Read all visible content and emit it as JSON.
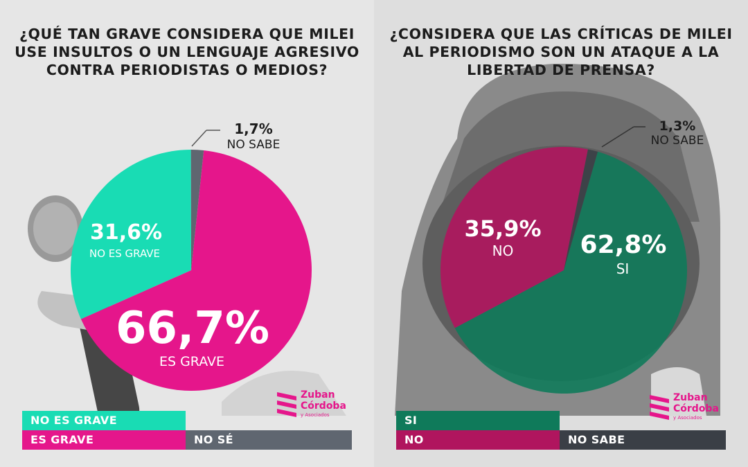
{
  "colors": {
    "teal": "#19dcb4",
    "magenta": "#e5168b",
    "gray": "#5f6670",
    "dark_green": "#0f7a5a",
    "dark_magenta": "#b0155e",
    "dark_gray": "#3a3f46"
  },
  "left": {
    "title_lines": [
      "¿QUÉ TAN GRAVE CONSIDERA QUE MILEI",
      "USE INSULTOS O UN LENGUAJE AGRESIVO",
      "CONTRA PERIODISTAS O MEDIOS?"
    ],
    "legend": {
      "no_grave": "NO ES GRAVE",
      "grave": "ES GRAVE",
      "no_se": "NO SÉ"
    }
  },
  "right": {
    "title_lines": [
      "¿CONSIDERA QUE LAS CRÍTICAS DE MILEI",
      "AL PERIODISMO SON UN ATAQUE A LA",
      "LIBERTAD DE PRENSA?"
    ],
    "legend": {
      "si": "SI",
      "no": "NO",
      "no_sabe": "NO SABE"
    }
  },
  "logo": {
    "line1": "Zuban",
    "line2": "Córdoba",
    "line3": "y Asociados"
  },
  "chart_data": [
    {
      "type": "pie",
      "title": "¿QUÉ TAN GRAVE CONSIDERA QUE MILEI USE INSULTOS O UN LENGUAJE AGRESIVO CONTRA PERIODISTAS O MEDIOS?",
      "slices": [
        {
          "label": "ES GRAVE",
          "value": 66.7,
          "display": "66,7%",
          "color": "#e5168b"
        },
        {
          "label": "NO ES GRAVE",
          "value": 31.6,
          "display": "31,6%",
          "color": "#19dcb4"
        },
        {
          "label": "NO SABE",
          "value": 1.7,
          "display": "1,7%",
          "color": "#5f6670"
        }
      ]
    },
    {
      "type": "pie",
      "title": "¿CONSIDERA QUE LAS CRÍTICAS DE MILEI AL PERIODISMO SON UN ATAQUE A LA LIBERTAD DE PRENSA?",
      "slices": [
        {
          "label": "SI",
          "value": 62.8,
          "display": "62,8%",
          "color": "#0f7a5a"
        },
        {
          "label": "NO",
          "value": 35.9,
          "display": "35,9%",
          "color": "#b0155e"
        },
        {
          "label": "NO SABE",
          "value": 1.3,
          "display": "1,3%",
          "color": "#3a3f46"
        }
      ]
    }
  ]
}
